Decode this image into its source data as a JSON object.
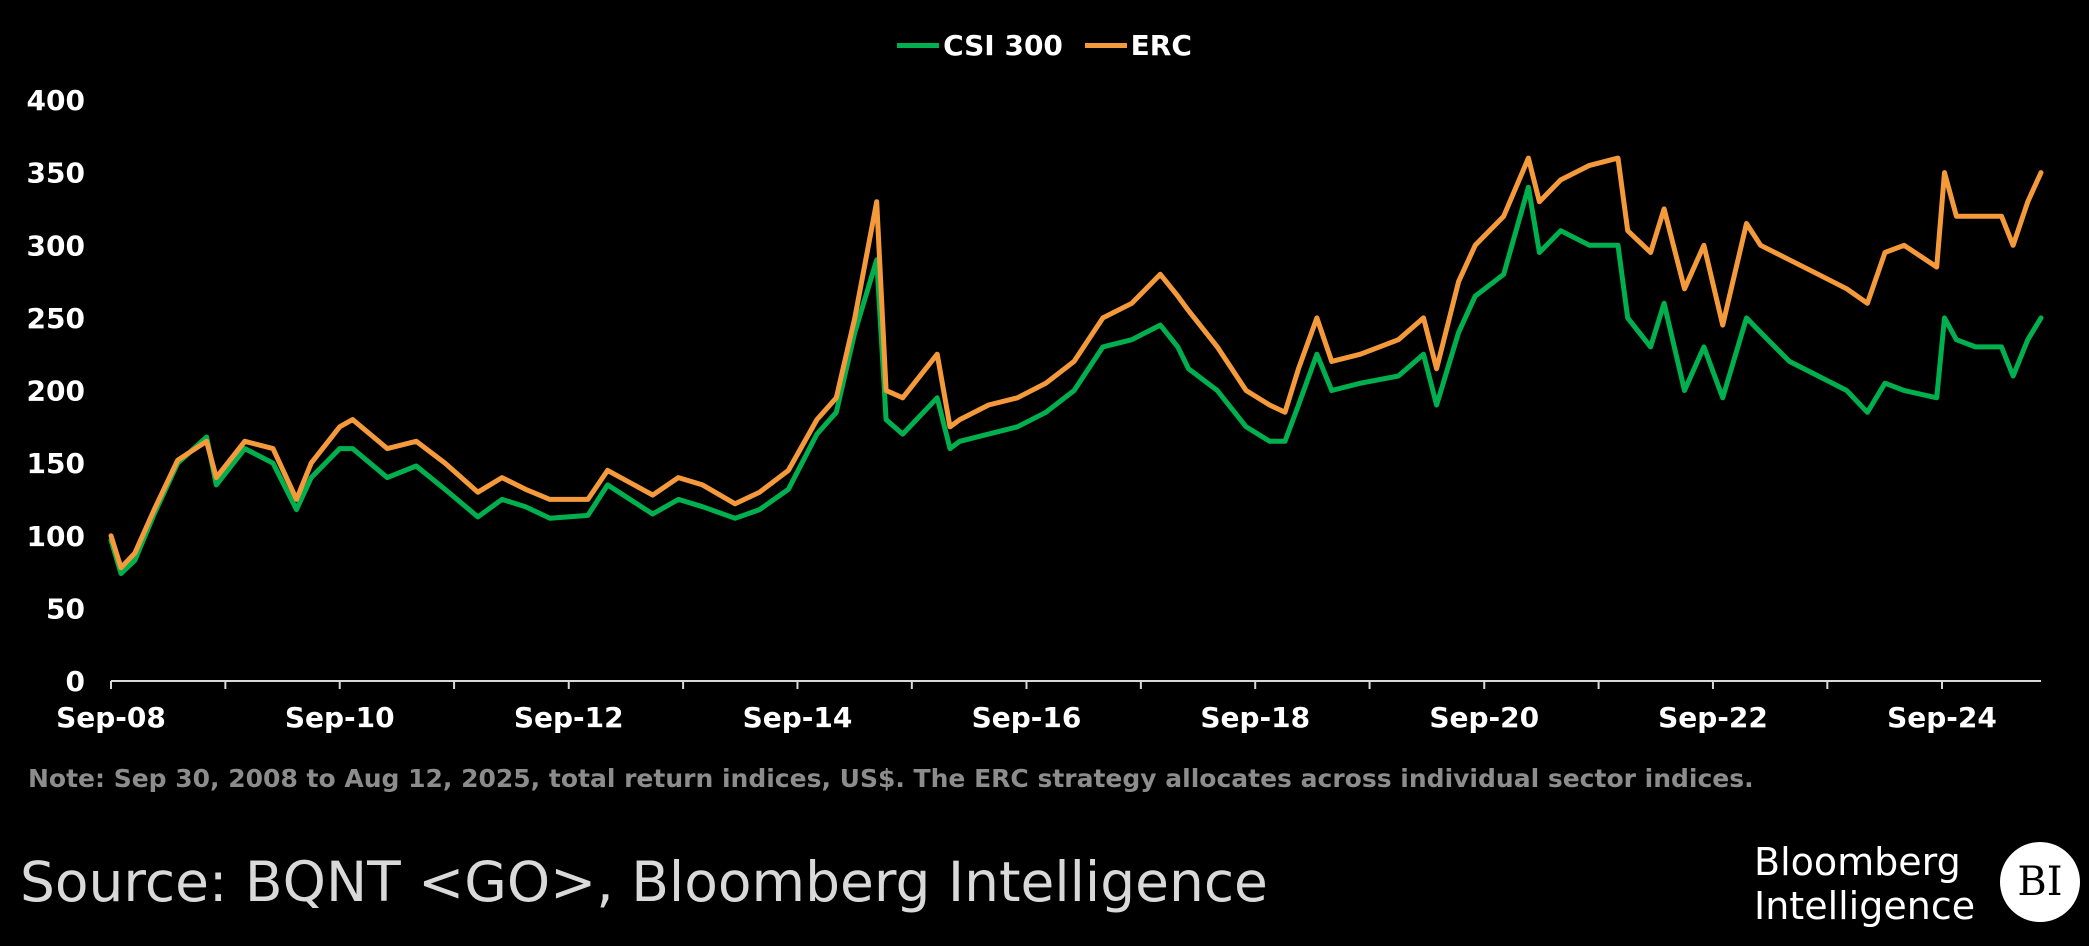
{
  "legend": [
    {
      "name": "CSI 300",
      "color": "#00b04f"
    },
    {
      "name": "ERC",
      "color": "#f59a3b"
    }
  ],
  "note": "Note: Sep 30, 2008 to Aug 12, 2025, total return indices, US$. The ERC strategy allocates across individual sector indices.",
  "source": "Source: BQNT <GO>, Bloomberg Intelligence",
  "logo": {
    "line1": "Bloomberg",
    "line2": "Intelligence",
    "badge": "BI"
  },
  "chart_data": {
    "type": "line",
    "x_ticks": [
      "Sep-08",
      "Sep-10",
      "Sep-12",
      "Sep-14",
      "Sep-16",
      "Sep-18",
      "Sep-20",
      "Sep-22",
      "Sep-24"
    ],
    "y_ticks": [
      0,
      50,
      100,
      150,
      200,
      250,
      300,
      350,
      400
    ],
    "ylim": [
      0,
      400
    ],
    "xlim": [
      "2008-09-30",
      "2025-08-12"
    ],
    "grid": false,
    "legend_position": "top-center",
    "series": [
      {
        "name": "CSI 300",
        "color": "#00b04f",
        "x": [
          "2008-09-30",
          "2008-11-01",
          "2008-12-15",
          "2009-02-15",
          "2009-05-01",
          "2009-08-01",
          "2009-09-01",
          "2009-12-01",
          "2010-03-01",
          "2010-05-15",
          "2010-07-01",
          "2010-09-30",
          "2010-11-10",
          "2011-03-01",
          "2011-06-01",
          "2011-09-01",
          "2011-12-15",
          "2012-03-01",
          "2012-05-15",
          "2012-08-01",
          "2012-11-30",
          "2013-02-01",
          "2013-06-25",
          "2013-09-15",
          "2013-12-01",
          "2014-03-15",
          "2014-06-01",
          "2014-09-01",
          "2014-12-01",
          "2015-02-01",
          "2015-04-01",
          "2015-06-10",
          "2015-07-10",
          "2015-09-01",
          "2015-12-20",
          "2016-01-30",
          "2016-03-01",
          "2016-06-01",
          "2016-09-01",
          "2016-12-01",
          "2017-03-01",
          "2017-06-01",
          "2017-09-01",
          "2017-12-01",
          "2018-01-26",
          "2018-03-01",
          "2018-06-01",
          "2018-09-01",
          "2018-11-15",
          "2019-01-03",
          "2019-02-15",
          "2019-04-15",
          "2019-06-01",
          "2019-09-01",
          "2019-12-31",
          "2020-03-20",
          "2020-05-01",
          "2020-07-10",
          "2020-09-01",
          "2020-12-01",
          "2021-02-18",
          "2021-03-25",
          "2021-06-01",
          "2021-09-01",
          "2021-12-01",
          "2022-01-01",
          "2022-03-15",
          "2022-04-27",
          "2022-07-01",
          "2022-09-01",
          "2022-10-31",
          "2023-01-15",
          "2023-03-01",
          "2023-06-01",
          "2023-09-01",
          "2023-12-01",
          "2024-02-05",
          "2024-04-01",
          "2024-06-01",
          "2024-09-13",
          "2024-10-08",
          "2024-11-15",
          "2025-01-15",
          "2025-04-08",
          "2025-05-15",
          "2025-07-01",
          "2025-08-12"
        ],
        "values": [
          97,
          74,
          83,
          115,
          150,
          168,
          135,
          160,
          150,
          118,
          140,
          160,
          160,
          140,
          148,
          132,
          113,
          125,
          120,
          112,
          114,
          135,
          115,
          125,
          120,
          112,
          118,
          132,
          170,
          185,
          240,
          290,
          180,
          170,
          195,
          160,
          165,
          170,
          175,
          185,
          200,
          230,
          235,
          245,
          230,
          215,
          200,
          175,
          165,
          165,
          190,
          225,
          200,
          205,
          210,
          225,
          190,
          240,
          265,
          280,
          340,
          295,
          310,
          300,
          300,
          250,
          230,
          260,
          200,
          230,
          195,
          250,
          240,
          220,
          210,
          200,
          185,
          205,
          200,
          195,
          250,
          235,
          230,
          230,
          210,
          235,
          250
        ]
      },
      {
        "name": "ERC",
        "color": "#f59a3b",
        "x": [
          "2008-09-30",
          "2008-11-01",
          "2008-12-15",
          "2009-02-15",
          "2009-05-01",
          "2009-08-01",
          "2009-09-01",
          "2009-12-01",
          "2010-03-01",
          "2010-05-15",
          "2010-07-01",
          "2010-09-30",
          "2010-11-10",
          "2011-03-01",
          "2011-06-01",
          "2011-09-01",
          "2011-12-15",
          "2012-03-01",
          "2012-05-15",
          "2012-08-01",
          "2012-11-30",
          "2013-02-01",
          "2013-06-25",
          "2013-09-15",
          "2013-12-01",
          "2014-03-15",
          "2014-06-01",
          "2014-09-01",
          "2014-12-01",
          "2015-02-01",
          "2015-04-01",
          "2015-06-10",
          "2015-07-10",
          "2015-09-01",
          "2015-12-20",
          "2016-01-30",
          "2016-03-01",
          "2016-06-01",
          "2016-09-01",
          "2016-12-01",
          "2017-03-01",
          "2017-06-01",
          "2017-09-01",
          "2017-12-01",
          "2018-01-26",
          "2018-03-01",
          "2018-06-01",
          "2018-09-01",
          "2018-11-15",
          "2019-01-03",
          "2019-02-15",
          "2019-04-15",
          "2019-06-01",
          "2019-09-01",
          "2019-12-31",
          "2020-03-20",
          "2020-05-01",
          "2020-07-10",
          "2020-09-01",
          "2020-12-01",
          "2021-02-18",
          "2021-03-25",
          "2021-06-01",
          "2021-09-01",
          "2021-12-01",
          "2022-01-01",
          "2022-03-15",
          "2022-04-27",
          "2022-07-01",
          "2022-09-01",
          "2022-10-31",
          "2023-01-15",
          "2023-03-01",
          "2023-06-01",
          "2023-09-01",
          "2023-12-01",
          "2024-02-05",
          "2024-04-01",
          "2024-06-01",
          "2024-09-13",
          "2024-10-08",
          "2024-11-15",
          "2025-01-15",
          "2025-04-08",
          "2025-05-15",
          "2025-07-01",
          "2025-08-12"
        ],
        "values": [
          100,
          78,
          88,
          118,
          152,
          165,
          140,
          165,
          160,
          125,
          150,
          175,
          180,
          160,
          165,
          150,
          130,
          140,
          132,
          125,
          125,
          145,
          128,
          140,
          135,
          122,
          130,
          145,
          180,
          195,
          250,
          330,
          200,
          195,
          225,
          175,
          180,
          190,
          195,
          205,
          220,
          250,
          260,
          280,
          265,
          255,
          230,
          200,
          190,
          185,
          215,
          250,
          220,
          225,
          235,
          250,
          215,
          275,
          300,
          320,
          360,
          330,
          345,
          355,
          360,
          310,
          295,
          325,
          270,
          300,
          245,
          315,
          300,
          290,
          280,
          270,
          260,
          295,
          300,
          285,
          350,
          320,
          320,
          320,
          300,
          330,
          350
        ]
      }
    ]
  }
}
